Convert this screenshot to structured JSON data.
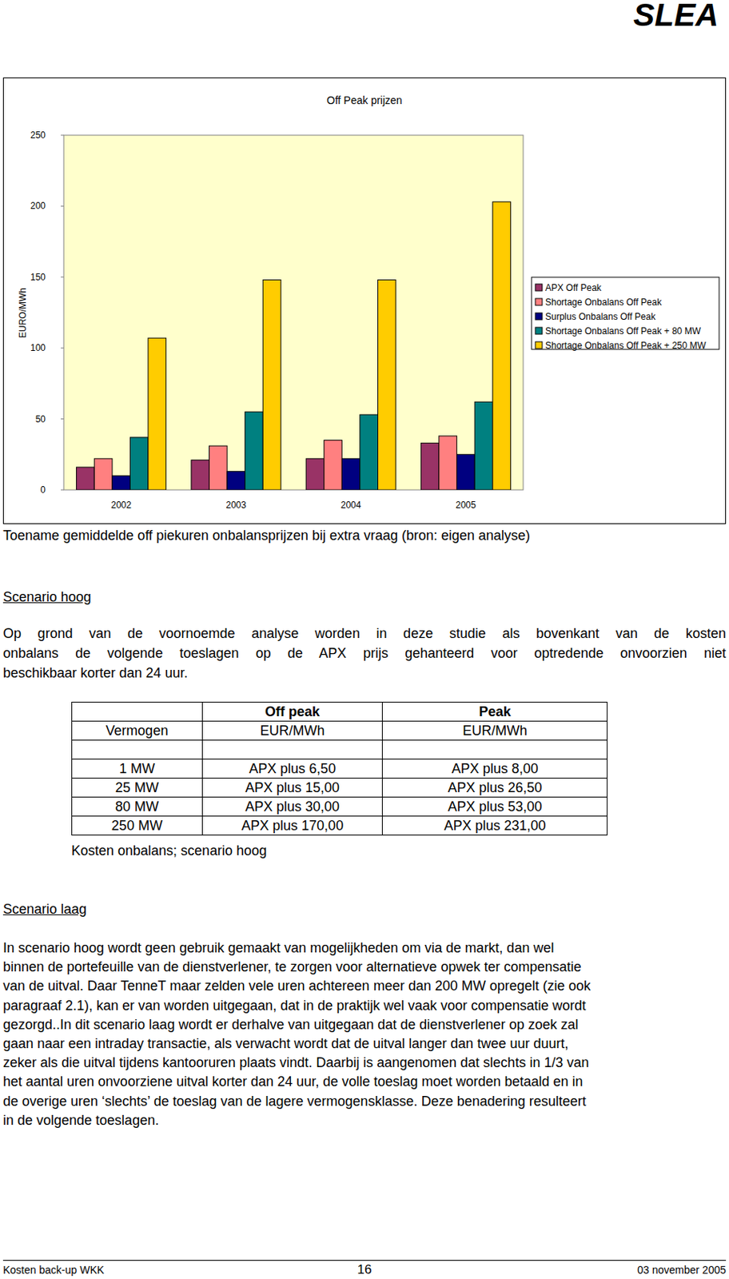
{
  "header": {
    "brand": "SLEA"
  },
  "chart_data": {
    "type": "bar",
    "title": "Off Peak prijzen",
    "y_label": "EURO/MWh",
    "categories": [
      "2002",
      "2003",
      "2004",
      "2005"
    ],
    "series": [
      {
        "name": "APX Off Peak",
        "color": "#993366",
        "values": [
          16,
          21,
          22,
          33
        ]
      },
      {
        "name": "Shortage Onbalans Off Peak",
        "color": "#ff8080",
        "values": [
          22,
          31,
          35,
          38
        ]
      },
      {
        "name": "Surplus Onbalans Off Peak",
        "color": "#000080",
        "values": [
          10,
          13,
          22,
          25
        ]
      },
      {
        "name": "Shortage Onbalans Off Peak + 80 MW",
        "color": "#008080",
        "values": [
          37,
          55,
          53,
          62
        ]
      },
      {
        "name": "Shortage Onbalans Off Peak + 250 MW",
        "color": "#ffcc00",
        "values": [
          107,
          148,
          148,
          203
        ]
      }
    ],
    "ylim": [
      0,
      250
    ],
    "yticks": [
      0,
      50,
      100,
      150,
      200,
      250
    ],
    "grid": false,
    "legend": "right"
  },
  "caption": "Toename gemiddelde off piekuren onbalansprijzen bij extra vraag (bron: eigen analyse)",
  "sections": [
    {
      "title": "Scenario hoog",
      "lines": [
        "Op grond van de voornoemde analyse worden in deze studie als bovenkant van de kosten",
        "onbalans de volgende toeslagen op de APX prijs gehanteerd voor optredende onvoorzien niet",
        "beschikbaar korter dan 24 uur."
      ]
    },
    {
      "title": "Scenario laag",
      "lines": [
        "In scenario hoog wordt geen gebruik gemaakt van mogelijkheden om via de markt, dan wel",
        "binnen de portefeuille van de dienstverlener, te zorgen voor alternatieve opwek ter compensatie",
        "van de uitval. Daar TenneT maar zelden vele uren achtereen meer dan 200 MW opregelt (zie ook",
        "paragraaf 2.1), kan er van worden uitgegaan, dat in de praktijk wel vaak voor compensatie wordt",
        "gezorgd..In dit scenario laag wordt er derhalve van uitgegaan dat de dienstverlener op zoek zal",
        "gaan naar een intraday transactie, als verwacht wordt dat de uitval langer dan twee uur duurt,",
        "zeker als die uitval tijdens kantooruren plaats vindt. Daarbij is aangenomen dat slechts in 1/3 van",
        "het aantal uren onvoorziene uitval korter dan 24 uur, de volle toeslag moet worden betaald en in",
        "de overige uren ‘slechts’ de toeslag van de lagere vermogensklasse. Deze benadering resulteert",
        "in de volgende toeslagen."
      ]
    }
  ],
  "table": {
    "header": [
      [
        null,
        "Off peak",
        "Peak"
      ],
      [
        "Vermogen",
        "EUR/MWh",
        "EUR/MWh"
      ]
    ],
    "rows": [
      [
        "1 MW",
        "APX plus 6,50",
        "APX plus 8,00"
      ],
      [
        "25 MW",
        "APX plus 15,00",
        "APX plus 26,50"
      ],
      [
        "80 MW",
        "APX plus 30,00",
        "APX plus 53,00"
      ],
      [
        "250 MW",
        "APX plus 170,00",
        "APX plus 231,00"
      ]
    ],
    "caption": "Kosten onbalans; scenario hoog"
  },
  "footer": {
    "left": "Kosten back-up WKK",
    "center": "16",
    "right": "03 november 2005"
  }
}
